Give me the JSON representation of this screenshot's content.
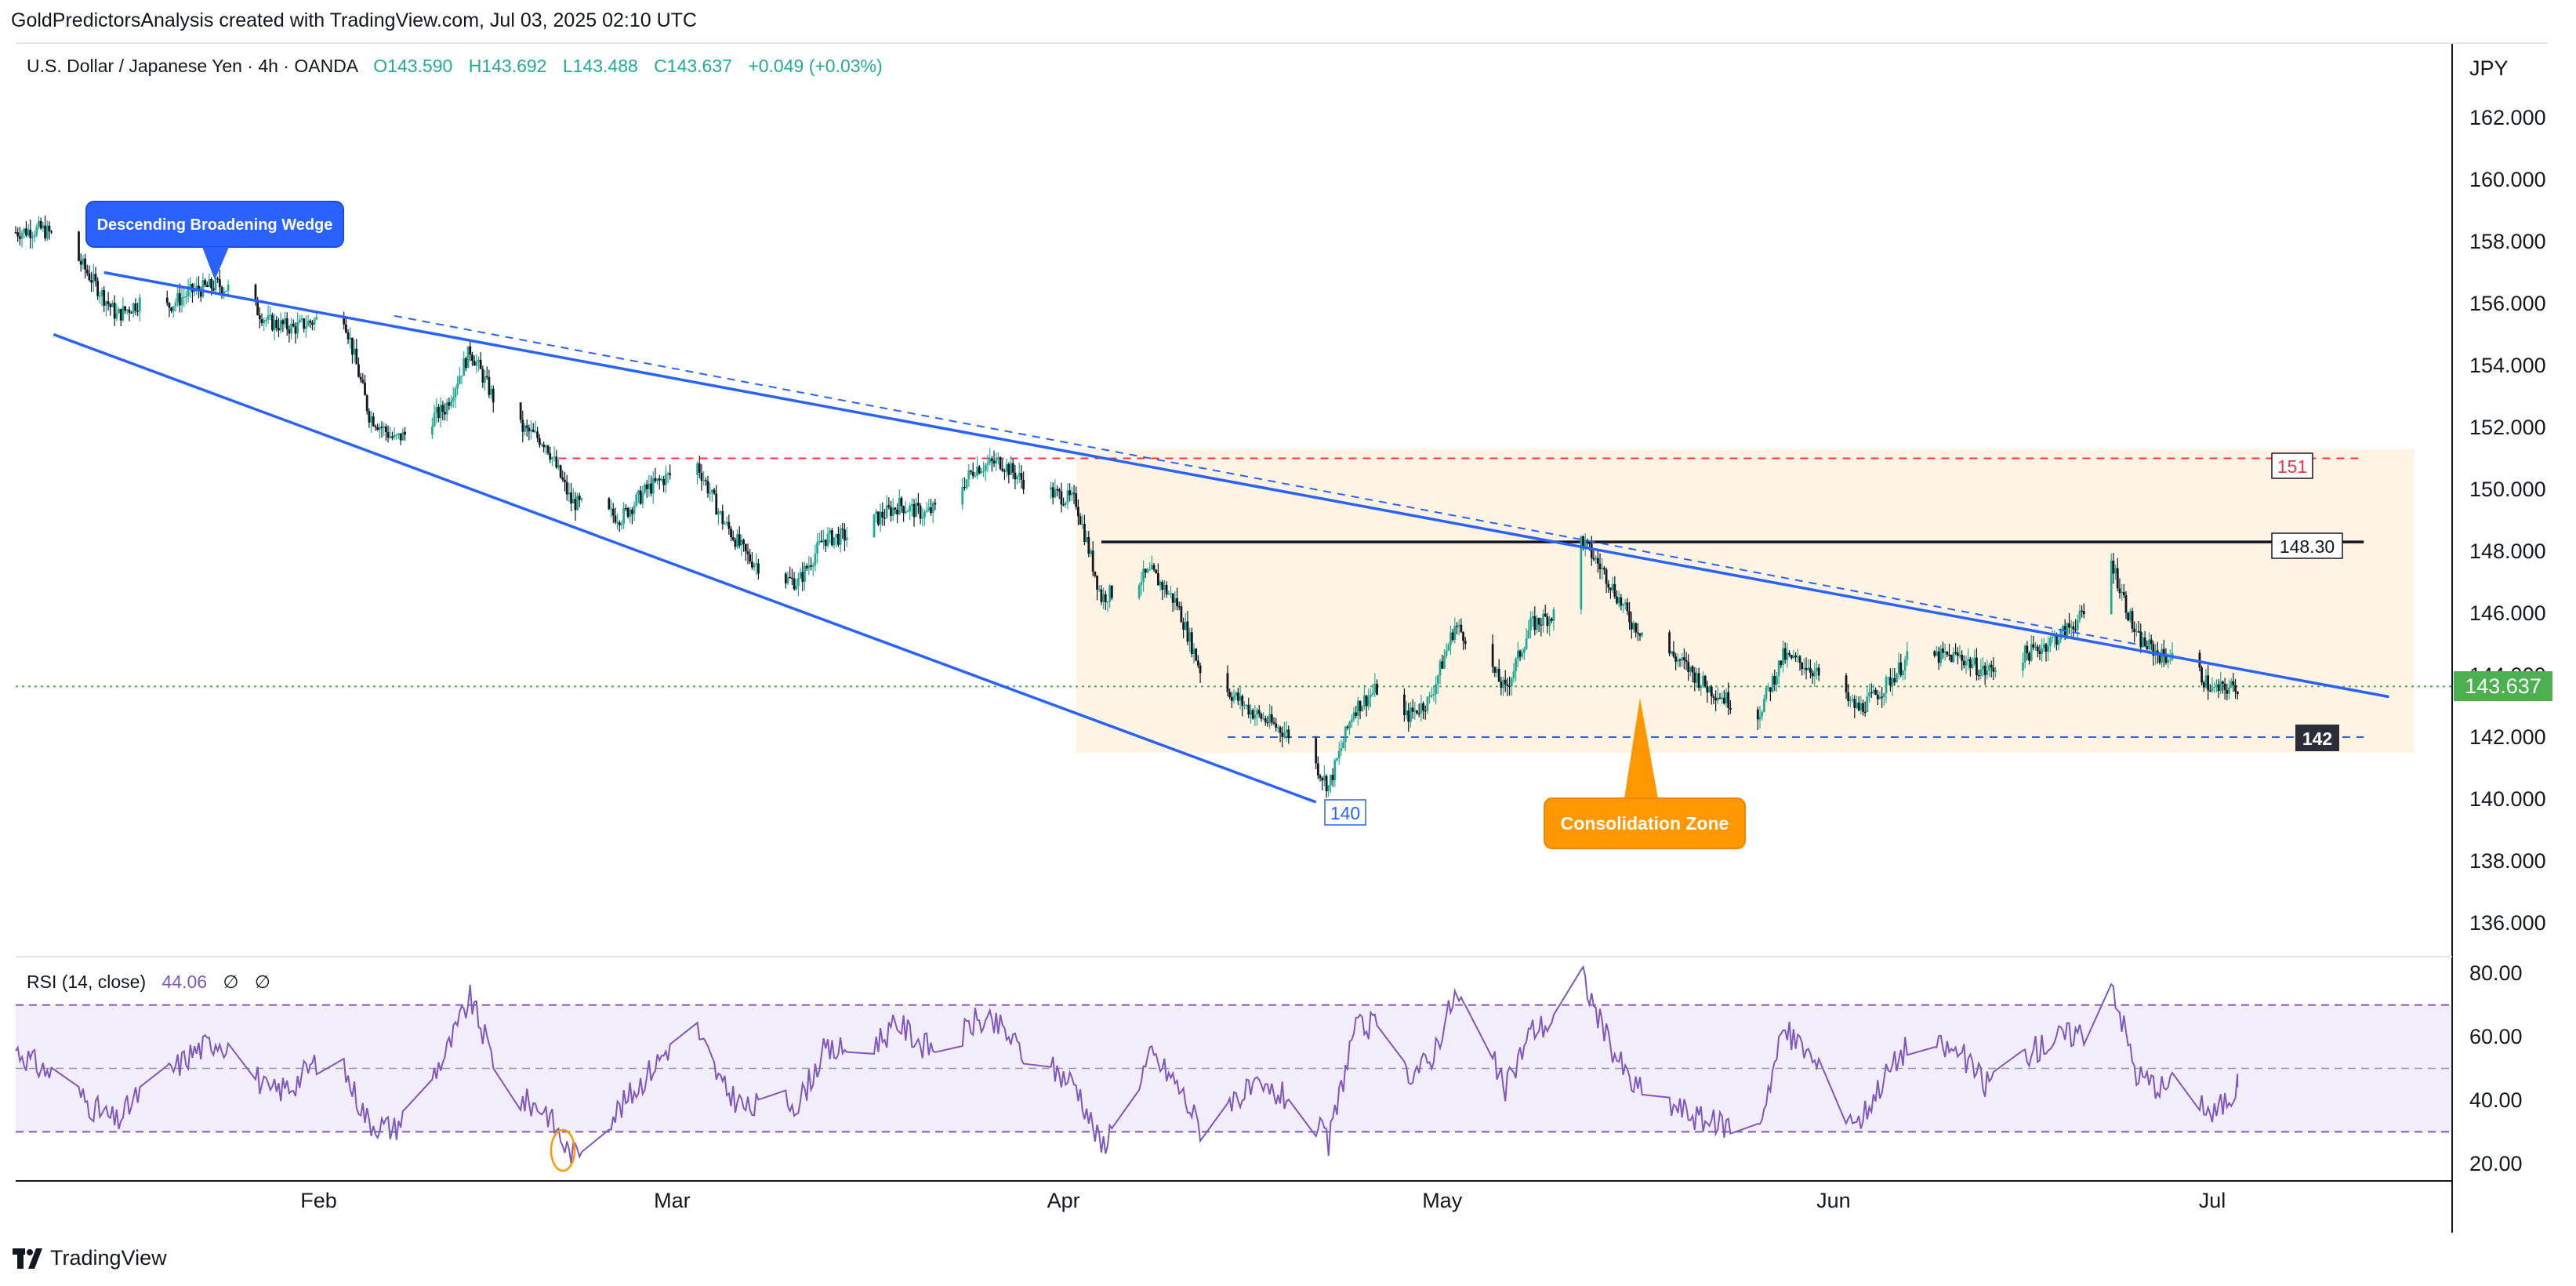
{
  "header": {
    "text": "GoldPredictorsAnalysis created with TradingView.com, Jul 03, 2025 02:10 UTC"
  },
  "legend": {
    "symbol": "U.S. Dollar / Japanese Yen · 4h · OANDA",
    "open": "O143.590",
    "high": "H143.692",
    "low": "L143.488",
    "close": "C143.637",
    "change": "+0.049 (+0.03%)"
  },
  "currency": "JPY",
  "rsi_legend": {
    "label": "RSI (14, close)",
    "value": "44.06",
    "extra1": "∅",
    "extra2": "∅"
  },
  "footer": {
    "brand": "TradingView"
  },
  "colors": {
    "up": "#22ab94",
    "down": "#131722",
    "wedge": "#2962ff",
    "rsi": "#7e57c2",
    "zone": "#fff3e0",
    "orange": "#ff9800",
    "red": "#f23645",
    "green_tag": "#4caf50"
  },
  "annotations": {
    "wedge_label": "Descending Broadening Wedge",
    "zone_label": "Consolidation Zone",
    "level_151": "151",
    "level_148": "148.30",
    "level_142": "142",
    "level_140": "140",
    "last_price": "143.637"
  },
  "chart_data": [
    {
      "type": "candlestick",
      "title": "U.S. Dollar / Japanese Yen · 4h · OANDA",
      "x_labels": [
        "Feb",
        "Mar",
        "Apr",
        "May",
        "Jun",
        "Jul"
      ],
      "y_ticks": [
        "162.000",
        "160.000",
        "158.000",
        "156.000",
        "154.000",
        "152.000",
        "150.000",
        "148.000",
        "146.000",
        "144.000",
        "142.000",
        "140.000",
        "138.000",
        "136.000"
      ],
      "ylim": [
        135,
        163.5
      ],
      "x_range": [
        "2025-01-08",
        "2025-07-20"
      ],
      "path": [
        [
          "2025-01-08",
          158.3
        ],
        [
          "2025-01-10",
          158.4
        ],
        [
          "2025-01-12",
          158.0
        ],
        [
          "2025-01-14",
          156.8
        ],
        [
          "2025-01-16",
          155.6
        ],
        [
          "2025-01-18",
          156.1
        ],
        [
          "2025-01-20",
          155.9
        ],
        [
          "2025-01-22",
          156.4
        ],
        [
          "2025-01-24",
          156.6
        ],
        [
          "2025-01-26",
          156.3
        ],
        [
          "2025-01-28",
          155.4
        ],
        [
          "2025-01-30",
          155.2
        ],
        [
          "2025-02-01",
          155.5
        ],
        [
          "2025-02-03",
          155.6
        ],
        [
          "2025-02-05",
          152.4
        ],
        [
          "2025-02-07",
          151.6
        ],
        [
          "2025-02-09",
          152.0
        ],
        [
          "2025-02-11",
          152.6
        ],
        [
          "2025-02-13",
          154.5
        ],
        [
          "2025-02-15",
          152.8
        ],
        [
          "2025-02-17",
          152.0
        ],
        [
          "2025-02-19",
          151.5
        ],
        [
          "2025-02-21",
          149.6
        ],
        [
          "2025-02-23",
          149.3
        ],
        [
          "2025-02-25",
          149.1
        ],
        [
          "2025-02-27",
          150.0
        ],
        [
          "2025-03-01",
          150.5
        ],
        [
          "2025-03-03",
          150.8
        ],
        [
          "2025-03-05",
          149.0
        ],
        [
          "2025-03-07",
          147.8
        ],
        [
          "2025-03-09",
          147.2
        ],
        [
          "2025-03-11",
          147.0
        ],
        [
          "2025-03-13",
          148.4
        ],
        [
          "2025-03-15",
          148.5
        ],
        [
          "2025-03-17",
          149.0
        ],
        [
          "2025-03-19",
          149.5
        ],
        [
          "2025-03-21",
          149.2
        ],
        [
          "2025-03-23",
          149.6
        ],
        [
          "2025-03-25",
          150.7
        ],
        [
          "2025-03-27",
          150.9
        ],
        [
          "2025-03-29",
          150.2
        ],
        [
          "2025-03-31",
          149.9
        ],
        [
          "2025-04-02",
          149.6
        ],
        [
          "2025-04-04",
          146.5
        ],
        [
          "2025-04-06",
          146.9
        ],
        [
          "2025-04-08",
          147.3
        ],
        [
          "2025-04-10",
          146.3
        ],
        [
          "2025-04-12",
          144.0
        ],
        [
          "2025-04-14",
          143.5
        ],
        [
          "2025-04-16",
          142.8
        ],
        [
          "2025-04-18",
          142.3
        ],
        [
          "2025-04-20",
          141.8
        ],
        [
          "2025-04-22",
          140.4
        ],
        [
          "2025-04-24",
          142.9
        ],
        [
          "2025-04-26",
          143.6
        ],
        [
          "2025-04-28",
          142.6
        ],
        [
          "2025-04-30",
          143.2
        ],
        [
          "2025-05-02",
          145.6
        ],
        [
          "2025-05-04",
          144.8
        ],
        [
          "2025-05-06",
          143.5
        ],
        [
          "2025-05-08",
          145.6
        ],
        [
          "2025-05-10",
          146.0
        ],
        [
          "2025-05-12",
          148.4
        ],
        [
          "2025-05-14",
          147.2
        ],
        [
          "2025-05-16",
          145.7
        ],
        [
          "2025-05-18",
          145.0
        ],
        [
          "2025-05-20",
          144.4
        ],
        [
          "2025-05-22",
          143.6
        ],
        [
          "2025-05-24",
          143.1
        ],
        [
          "2025-05-26",
          142.7
        ],
        [
          "2025-05-28",
          144.6
        ],
        [
          "2025-05-30",
          144.3
        ],
        [
          "2025-06-01",
          143.5
        ],
        [
          "2025-06-03",
          142.9
        ],
        [
          "2025-06-05",
          143.6
        ],
        [
          "2025-06-07",
          144.6
        ],
        [
          "2025-06-09",
          144.6
        ],
        [
          "2025-06-11",
          144.6
        ],
        [
          "2025-06-13",
          144.1
        ],
        [
          "2025-06-15",
          144.5
        ],
        [
          "2025-06-17",
          144.8
        ],
        [
          "2025-06-19",
          145.3
        ],
        [
          "2025-06-21",
          146.0
        ],
        [
          "2025-06-23",
          147.7
        ],
        [
          "2025-06-25",
          145.2
        ],
        [
          "2025-06-27",
          144.6
        ],
        [
          "2025-06-29",
          144.6
        ],
        [
          "2025-07-01",
          143.5
        ],
        [
          "2025-07-03",
          143.637
        ]
      ]
    },
    {
      "type": "line",
      "title": "RSI (14, close)",
      "y_ticks": [
        "80.00",
        "60.00",
        "40.00",
        "20.00"
      ],
      "ylim": [
        16,
        84
      ],
      "upper_band": 70,
      "lower_band": 30,
      "mid_line": 50,
      "last_value": 44.06,
      "path": [
        [
          "2025-01-08",
          56
        ],
        [
          "2025-01-10",
          50
        ],
        [
          "2025-01-12",
          46
        ],
        [
          "2025-01-14",
          38
        ],
        [
          "2025-01-16",
          33
        ],
        [
          "2025-01-18",
          43
        ],
        [
          "2025-01-20",
          48
        ],
        [
          "2025-01-22",
          55
        ],
        [
          "2025-01-24",
          59
        ],
        [
          "2025-01-26",
          54
        ],
        [
          "2025-01-28",
          42
        ],
        [
          "2025-01-30",
          45
        ],
        [
          "2025-02-01",
          53
        ],
        [
          "2025-02-03",
          49
        ],
        [
          "2025-02-05",
          33
        ],
        [
          "2025-02-07",
          31
        ],
        [
          "2025-02-09",
          42
        ],
        [
          "2025-02-11",
          54
        ],
        [
          "2025-02-13",
          72
        ],
        [
          "2025-02-15",
          51
        ],
        [
          "2025-02-17",
          40
        ],
        [
          "2025-02-19",
          37
        ],
        [
          "2025-02-21",
          22
        ],
        [
          "2025-02-23",
          31
        ],
        [
          "2025-02-25",
          38
        ],
        [
          "2025-02-27",
          48
        ],
        [
          "2025-03-01",
          58
        ],
        [
          "2025-03-03",
          62
        ],
        [
          "2025-03-05",
          44
        ],
        [
          "2025-03-07",
          37
        ],
        [
          "2025-03-09",
          40
        ],
        [
          "2025-03-11",
          39
        ],
        [
          "2025-03-13",
          55
        ],
        [
          "2025-03-15",
          56
        ],
        [
          "2025-03-17",
          58
        ],
        [
          "2025-03-19",
          64
        ],
        [
          "2025-03-21",
          57
        ],
        [
          "2025-03-23",
          56
        ],
        [
          "2025-03-25",
          65
        ],
        [
          "2025-03-27",
          63
        ],
        [
          "2025-03-29",
          54
        ],
        [
          "2025-03-31",
          50
        ],
        [
          "2025-04-02",
          45
        ],
        [
          "2025-04-04",
          25
        ],
        [
          "2025-04-06",
          40
        ],
        [
          "2025-04-08",
          54
        ],
        [
          "2025-04-10",
          45
        ],
        [
          "2025-04-12",
          30
        ],
        [
          "2025-04-14",
          40
        ],
        [
          "2025-04-16",
          43
        ],
        [
          "2025-04-18",
          42
        ],
        [
          "2025-04-20",
          38
        ],
        [
          "2025-04-22",
          26
        ],
        [
          "2025-04-24",
          62
        ],
        [
          "2025-04-26",
          64
        ],
        [
          "2025-04-28",
          48
        ],
        [
          "2025-04-30",
          52
        ],
        [
          "2025-05-02",
          73
        ],
        [
          "2025-05-04",
          62
        ],
        [
          "2025-05-06",
          43
        ],
        [
          "2025-05-08",
          62
        ],
        [
          "2025-05-10",
          65
        ],
        [
          "2025-05-12",
          80
        ],
        [
          "2025-05-14",
          60
        ],
        [
          "2025-05-16",
          45
        ],
        [
          "2025-05-18",
          40
        ],
        [
          "2025-05-20",
          37
        ],
        [
          "2025-05-22",
          33
        ],
        [
          "2025-05-24",
          32
        ],
        [
          "2025-05-26",
          31
        ],
        [
          "2025-05-28",
          62
        ],
        [
          "2025-05-30",
          55
        ],
        [
          "2025-06-01",
          41
        ],
        [
          "2025-06-03",
          33
        ],
        [
          "2025-06-05",
          47
        ],
        [
          "2025-06-07",
          58
        ],
        [
          "2025-06-09",
          57
        ],
        [
          "2025-06-11",
          55
        ],
        [
          "2025-06-13",
          45
        ],
        [
          "2025-06-15",
          52
        ],
        [
          "2025-06-17",
          56
        ],
        [
          "2025-06-19",
          60
        ],
        [
          "2025-06-21",
          62
        ],
        [
          "2025-06-23",
          78
        ],
        [
          "2025-06-25",
          48
        ],
        [
          "2025-06-27",
          44
        ],
        [
          "2025-06-29",
          46
        ],
        [
          "2025-07-01",
          35
        ],
        [
          "2025-07-03",
          44.06
        ]
      ]
    }
  ]
}
